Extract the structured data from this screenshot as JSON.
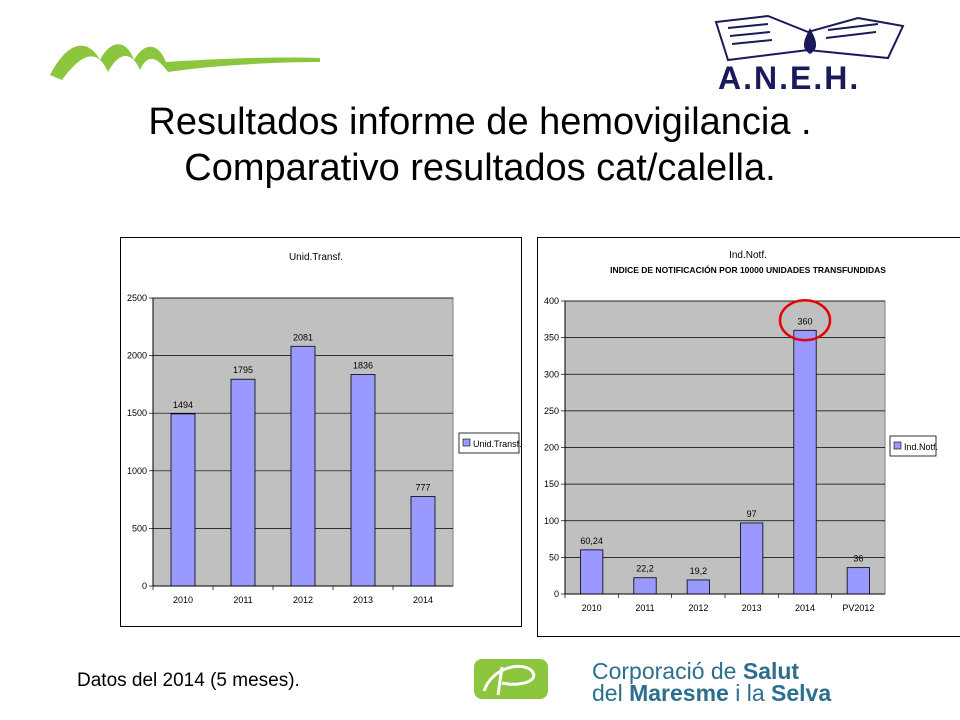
{
  "slide": {
    "title_line1": "Resultados informe de hemovigilancia .",
    "title_line2": "Comparativo resultados cat/calella.",
    "footnote": "Datos del 2014 (5 meses).",
    "logo_aneh_text": "A.N.E.H.",
    "logo_csms_line1_a": "Corporació de ",
    "logo_csms_line1_b": "Salut",
    "logo_csms_line2_a": "del ",
    "logo_csms_line2_b": "Maresme",
    "logo_csms_line2_c": " i la ",
    "logo_csms_line2_d": "Selva"
  },
  "colors": {
    "bar_fill": "#9999ff",
    "plot_bg": "#c0c0c0",
    "green_logo": "#8cc63f",
    "circle": "#e60000"
  },
  "chart_data": [
    {
      "type": "bar",
      "title": "Unid.Transf.",
      "categories": [
        "2010",
        "2011",
        "2012",
        "2013",
        "2014"
      ],
      "series": [
        {
          "name": "Unid.Transf.",
          "values": [
            1494,
            1795,
            2081,
            1836,
            777
          ]
        }
      ],
      "data_labels": [
        "1494",
        "1795",
        "2081",
        "1836",
        "777"
      ],
      "ylim": [
        0,
        2500
      ],
      "yticks": [
        0,
        500,
        1000,
        1500,
        2000,
        2500
      ],
      "grid": true,
      "legend": "right"
    },
    {
      "type": "bar",
      "title": "Ind.Notf.",
      "subtitle": "INDICE DE NOTIFICACIÓN POR 10000 UNIDADES TRANSFUNDIDAS",
      "categories": [
        "2010",
        "2011",
        "2012",
        "2013",
        "2014",
        "PV2012"
      ],
      "series": [
        {
          "name": "Ind.Notf.",
          "values": [
            60.24,
            22.2,
            19.2,
            97,
            360,
            36
          ]
        }
      ],
      "data_labels": [
        "60,24",
        "22,2",
        "19,2",
        "97",
        "360",
        "36"
      ],
      "ylim": [
        0,
        400
      ],
      "yticks": [
        0,
        50,
        100,
        150,
        200,
        250,
        300,
        350,
        400
      ],
      "grid": true,
      "legend": "right",
      "highlight_label": "360"
    }
  ]
}
